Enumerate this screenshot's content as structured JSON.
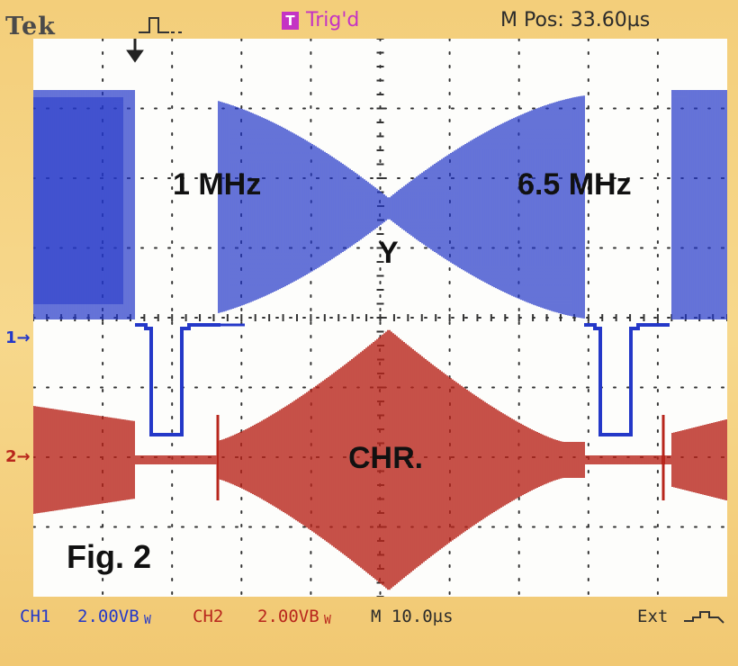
{
  "header": {
    "brand": "Tek",
    "trigger_badge": "T",
    "trigger_status": "Trig'd",
    "position": "M Pos: 33.60µs"
  },
  "channels": {
    "ch1_marker": "1→",
    "ch2_marker": "2→"
  },
  "annotations": {
    "low_freq": "1 MHz",
    "high_freq": "6.5 MHz",
    "luma": "Y",
    "chroma": "CHR.",
    "figure": "Fig. 2"
  },
  "footer": {
    "ch1_label": "CH1",
    "ch1_scale": "2.00VB",
    "ch1_suffix": "W",
    "ch2_label": "CH2",
    "ch2_scale": "2.00VB",
    "ch2_suffix": "W",
    "timebase": "M 10.0µs",
    "trigger_source": "Ext"
  },
  "colors": {
    "ch1": "#2438c8",
    "ch2": "#b8261c",
    "trigger": "#c433c4",
    "bezel": "#f3ce7a",
    "graticule": "#333333"
  },
  "icons": {
    "trigger_mark": "trigger-pulse-icon",
    "ext_edge": "rising-edge-icon"
  }
}
